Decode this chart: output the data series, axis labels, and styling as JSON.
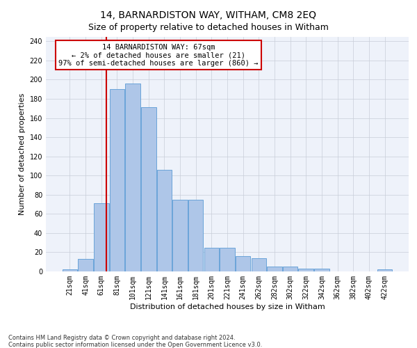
{
  "title": "14, BARNARDISTON WAY, WITHAM, CM8 2EQ",
  "subtitle": "Size of property relative to detached houses in Witham",
  "xlabel": "Distribution of detached houses by size in Witham",
  "ylabel": "Number of detached properties",
  "footer_line1": "Contains HM Land Registry data © Crown copyright and database right 2024.",
  "footer_line2": "Contains public sector information licensed under the Open Government Licence v3.0.",
  "bar_labels": [
    "21sqm",
    "41sqm",
    "61sqm",
    "81sqm",
    "101sqm",
    "121sqm",
    "141sqm",
    "161sqm",
    "181sqm",
    "201sqm",
    "221sqm",
    "241sqm",
    "262sqm",
    "282sqm",
    "302sqm",
    "322sqm",
    "342sqm",
    "362sqm",
    "382sqm",
    "402sqm",
    "422sqm"
  ],
  "bar_values": [
    2,
    13,
    71,
    190,
    196,
    171,
    106,
    75,
    75,
    25,
    25,
    16,
    14,
    5,
    5,
    3,
    3,
    0,
    0,
    0,
    2
  ],
  "bar_color": "#aec6e8",
  "bar_edgecolor": "#5b9bd5",
  "vline_x": 67,
  "vline_color": "#cc0000",
  "annotation_line1": "14 BARNARDISTON WAY: 67sqm",
  "annotation_line2": "← 2% of detached houses are smaller (21)",
  "annotation_line3": "97% of semi-detached houses are larger (860) →",
  "annotation_box_color": "#ffffff",
  "annotation_box_edgecolor": "#cc0000",
  "ylim": [
    0,
    245
  ],
  "yticks": [
    0,
    20,
    40,
    60,
    80,
    100,
    120,
    140,
    160,
    180,
    200,
    220,
    240
  ],
  "background_color": "#eef2fa",
  "grid_color": "#c8cdd8",
  "title_fontsize": 10,
  "axis_label_fontsize": 8,
  "tick_fontsize": 7,
  "bar_width": 0.95
}
